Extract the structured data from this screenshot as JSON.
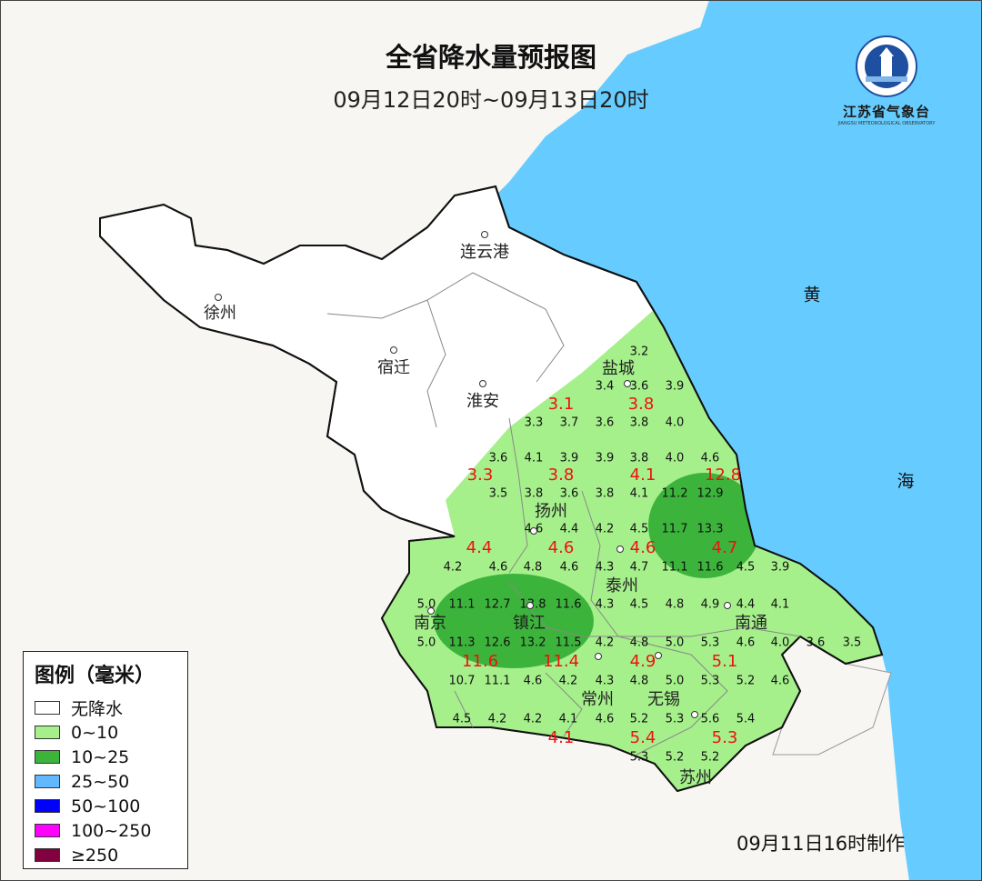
{
  "header": {
    "title": "全省降水量预报图",
    "subtitle": "09月12日20时~09月13日20时"
  },
  "logo": {
    "name": "江苏省气象台",
    "english": "JIANGSU METEOROLOGICAL OBSERVATORY",
    "ring_text": "江苏省气象台"
  },
  "colors": {
    "sea": "#66ccff",
    "land": "#f7f6f2",
    "no_rain": "#ffffff",
    "r0_10": "#a6f08c",
    "r10_25": "#3cb43c"
  },
  "sea_labels": [
    "黄",
    "海"
  ],
  "cities": [
    "连云港",
    "徐州",
    "宿迁",
    "淮安",
    "盐城",
    "扬州",
    "泰州",
    "南京",
    "镇江",
    "常州",
    "无锡",
    "南通",
    "苏州"
  ],
  "station_values": [
    "3.2",
    "3.4",
    "3.6",
    "3.9",
    "3.3",
    "3.7",
    "3.6",
    "3.8",
    "4.0",
    "3.6",
    "4.1",
    "3.9",
    "3.9",
    "3.8",
    "4.0",
    "4.6",
    "3.5",
    "3.8",
    "3.6",
    "3.8",
    "4.1",
    "11.2",
    "12.9",
    "4.6",
    "4.4",
    "4.2",
    "4.5",
    "11.7",
    "13.3",
    "4.2",
    "4.6",
    "4.8",
    "4.6",
    "4.3",
    "4.7",
    "11.1",
    "11.6",
    "4.5",
    "3.9",
    "5.0",
    "11.1",
    "12.7",
    "13.8",
    "11.6",
    "4.3",
    "4.5",
    "4.8",
    "4.9",
    "4.4",
    "4.1",
    "5.0",
    "11.3",
    "12.6",
    "13.2",
    "11.5",
    "4.2",
    "4.8",
    "5.0",
    "5.3",
    "4.6",
    "4.0",
    "3.6",
    "3.5",
    "10.7",
    "11.1",
    "4.6",
    "4.2",
    "4.3",
    "4.8",
    "5.0",
    "5.3",
    "5.2",
    "4.6",
    "4.5",
    "4.2",
    "4.2",
    "4.1",
    "4.6",
    "5.2",
    "5.3",
    "5.6",
    "5.4",
    "5.3",
    "5.2",
    "5.2"
  ],
  "area_values": [
    "3.1",
    "3.8",
    "3.3",
    "3.8",
    "4.1",
    "12.8",
    "4.4",
    "4.6",
    "4.6",
    "4.7",
    "11.6",
    "11.4",
    "4.9",
    "5.1",
    "4.1",
    "5.4",
    "5.3"
  ],
  "legend": {
    "title": "图例（毫米）",
    "items": [
      {
        "label": "无降水",
        "color": "#ffffff"
      },
      {
        "label": "0~10",
        "color": "#a6f08c"
      },
      {
        "label": "10~25",
        "color": "#3cb43c"
      },
      {
        "label": "25~50",
        "color": "#61b8ff"
      },
      {
        "label": "50~100",
        "color": "#0000ff"
      },
      {
        "label": "100~250",
        "color": "#ff00ff"
      },
      {
        "label": "≥250",
        "color": "#800040"
      }
    ]
  },
  "footer": "09月11日16时制作"
}
